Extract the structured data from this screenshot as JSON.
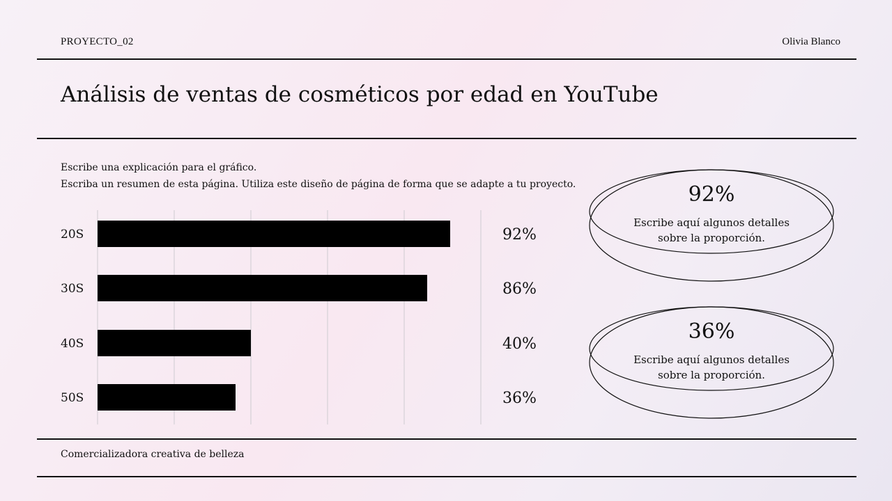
{
  "header": {
    "project": "PROYECTO_02",
    "author": "Olivia Blanco"
  },
  "title": "Análisis de ventas de cosméticos por edad en YouTube",
  "description": {
    "line1": "Escribe una explicación para el gráfico.",
    "line2": "Escriba un resumen de esta página. Utiliza este diseño de página de forma que se adapte a tu proyecto."
  },
  "chart_data": {
    "type": "bar",
    "orientation": "horizontal",
    "categories": [
      "20S",
      "30S",
      "40S",
      "50S"
    ],
    "values": [
      92,
      86,
      40,
      36
    ],
    "value_labels": [
      "92%",
      "86%",
      "40%",
      "36%"
    ],
    "xlim": [
      0,
      100
    ],
    "grid": true,
    "bar_color": "#000000"
  },
  "highlights": [
    {
      "value": "92%",
      "line1": "Escribe aquí algunos detalles",
      "line2": "sobre la proporción."
    },
    {
      "value": "36%",
      "line1": "Escribe aquí algunos detalles",
      "line2": "sobre la proporción."
    }
  ],
  "footer": {
    "label": "Comercializadora creativa de belleza"
  }
}
